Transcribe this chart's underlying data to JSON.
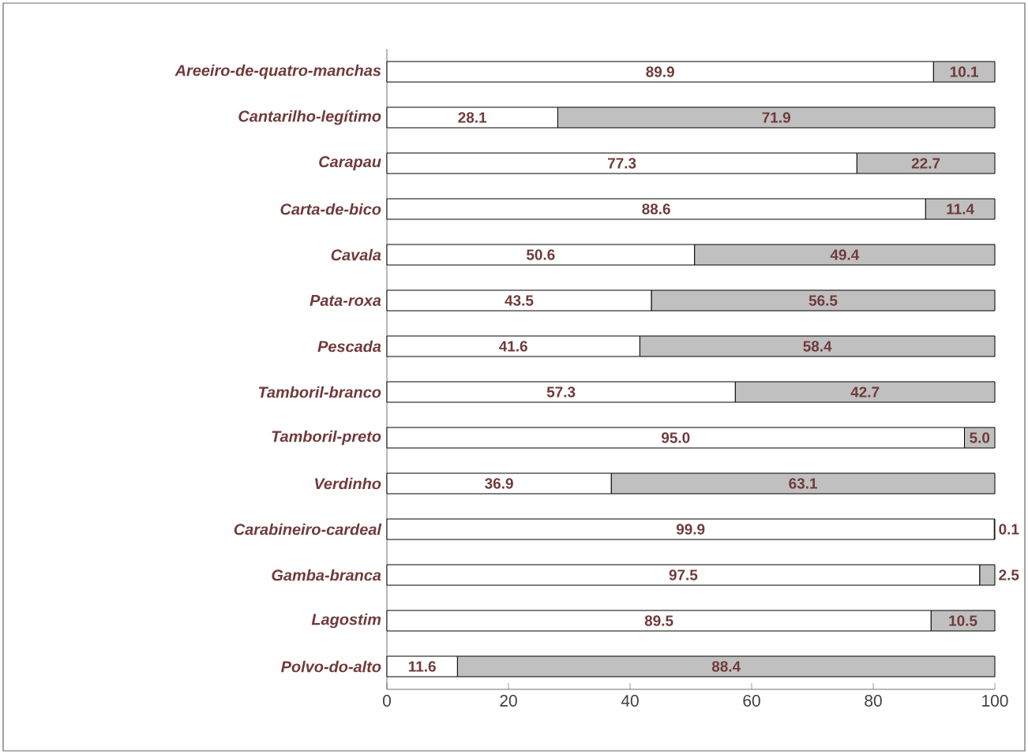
{
  "chart_data": {
    "type": "bar",
    "orientation": "horizontal",
    "stacked": true,
    "categories": [
      "Areeiro-de-quatro-manchas",
      "Cantarilho-legítimo",
      "Carapau",
      "Carta-de-bico",
      "Cavala",
      "Pata-roxa",
      "Pescada",
      "Tamboril-branco",
      "Tamboril-preto",
      "Verdinho",
      "Carabineiro-cardeal",
      "Gamba-branca",
      "Lagostim",
      "Polvo-do-alto"
    ],
    "series": [
      {
        "color": "#ffffff",
        "values": [
          89.9,
          28.1,
          77.3,
          88.6,
          50.6,
          43.5,
          41.6,
          57.3,
          95.0,
          36.9,
          99.9,
          97.5,
          89.5,
          11.6
        ],
        "value_labels": [
          "89.9",
          "28.1",
          "77.3",
          "88.6",
          "50.6",
          "43.5",
          "41.6",
          "57.3",
          "95.0",
          "36.9",
          "99.9",
          "97.5",
          "89.5",
          "11.6"
        ]
      },
      {
        "color": "#c0c0c0",
        "values": [
          10.1,
          71.9,
          22.7,
          11.4,
          49.4,
          56.5,
          58.4,
          42.7,
          5.0,
          63.1,
          0.1,
          2.5,
          10.5,
          88.4
        ],
        "value_labels": [
          "10.1",
          "71.9",
          "22.7",
          "11.4",
          "49.4",
          "56.5",
          "58.4",
          "42.7",
          "5.0",
          "63.1",
          "0.1",
          "2.5",
          "10.5",
          "88.4"
        ]
      }
    ],
    "xlim": [
      0,
      100
    ],
    "xticks": [
      0,
      20,
      40,
      60,
      80,
      100
    ]
  }
}
